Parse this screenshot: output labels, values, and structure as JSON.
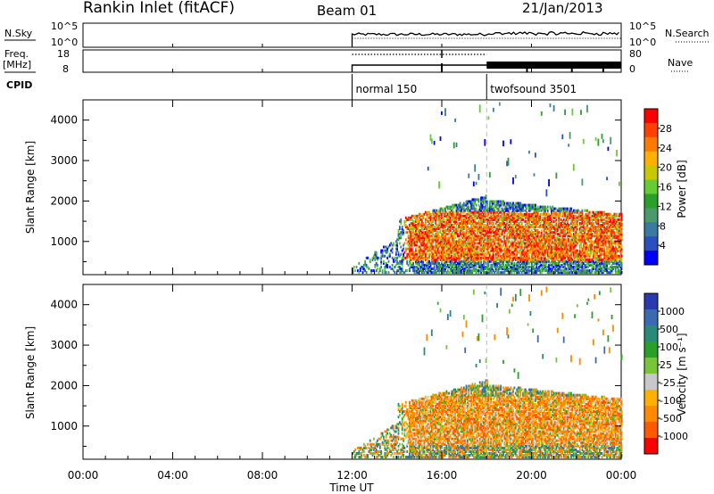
{
  "header": {
    "station": "Rankin Inlet (fitACF)",
    "beam": "Beam 01",
    "date": "21/Jan/2013"
  },
  "strip_labels": {
    "nsky": "N.Sky",
    "freq_line1": "Freq.",
    "freq_line2": "[MHz]",
    "cpid": "CPID",
    "nsearch": "N.Search",
    "nave": "Nave"
  },
  "chart_data": [
    {
      "type": "line",
      "name": "noise",
      "ylabel_left": "N.Sky",
      "ylabel_right": "N.Search",
      "left_ticks": [
        "10^5",
        "10^0"
      ],
      "right_ticks": [
        "10^5",
        "10^0"
      ],
      "x_range_hours": [
        0,
        24
      ],
      "data_start_hour": 12.0
    },
    {
      "type": "line",
      "name": "frequency-nave",
      "ylabel_left_lines": [
        "Freq.",
        "[MHz]"
      ],
      "ylabel_right": "Nave",
      "left_ticks": [
        "18",
        "8"
      ],
      "right_ticks": [
        "80",
        "0"
      ],
      "x_range_hours": [
        0,
        24
      ],
      "segments": [
        {
          "start": 12.0,
          "end": 18.0,
          "nave": "low"
        },
        {
          "start": 18.0,
          "end": 24.0,
          "nave": "high"
        }
      ]
    },
    {
      "type": "table",
      "name": "cpid",
      "label": "CPID",
      "entries": [
        {
          "start_hour": 12.0,
          "label": "normal 150"
        },
        {
          "start_hour": 18.0,
          "label": "twofsound 3501"
        }
      ]
    },
    {
      "type": "heatmap",
      "name": "power",
      "ylabel": "Slant Range [km]",
      "y_ticks": [
        1000,
        2000,
        3000,
        4000
      ],
      "ylim": [
        180,
        4500
      ],
      "x_range_hours": [
        0,
        24
      ],
      "colorbar": {
        "label": "Power [dB]",
        "ticks": [
          "28",
          "24",
          "20",
          "16",
          "12",
          "8",
          "4"
        ],
        "colors": [
          "#ff0000",
          "#ff4000",
          "#ff7a00",
          "#ffb000",
          "#c8c800",
          "#66cc33",
          "#2aa02a",
          "#4a9a6a",
          "#3a7aa0",
          "#2a50c0",
          "#0000ff"
        ]
      }
    },
    {
      "type": "heatmap",
      "name": "velocity",
      "ylabel": "Slant Range [km]",
      "y_ticks": [
        1000,
        2000,
        3000,
        4000
      ],
      "ylim": [
        180,
        4500
      ],
      "x_range_hours": [
        0,
        24
      ],
      "colorbar": {
        "label": "Velocity [m s⁻¹]",
        "ticks": [
          "1000",
          "500",
          "100",
          "25",
          "-25",
          "-100",
          "-500",
          "-1000"
        ],
        "colors": [
          "#2a3ab0",
          "#3a6ab0",
          "#2a8a7a",
          "#2aa02a",
          "#77c63a",
          "#c8c8c8",
          "#ffb000",
          "#ff8a00",
          "#ff5a00",
          "#ff0000"
        ]
      }
    }
  ],
  "x_axis": {
    "label": "Time UT",
    "ticks": [
      "00:00",
      "04:00",
      "08:00",
      "12:00",
      "16:00",
      "20:00",
      "00:00"
    ],
    "tick_hours": [
      0,
      4,
      8,
      12,
      16,
      20,
      24
    ]
  }
}
